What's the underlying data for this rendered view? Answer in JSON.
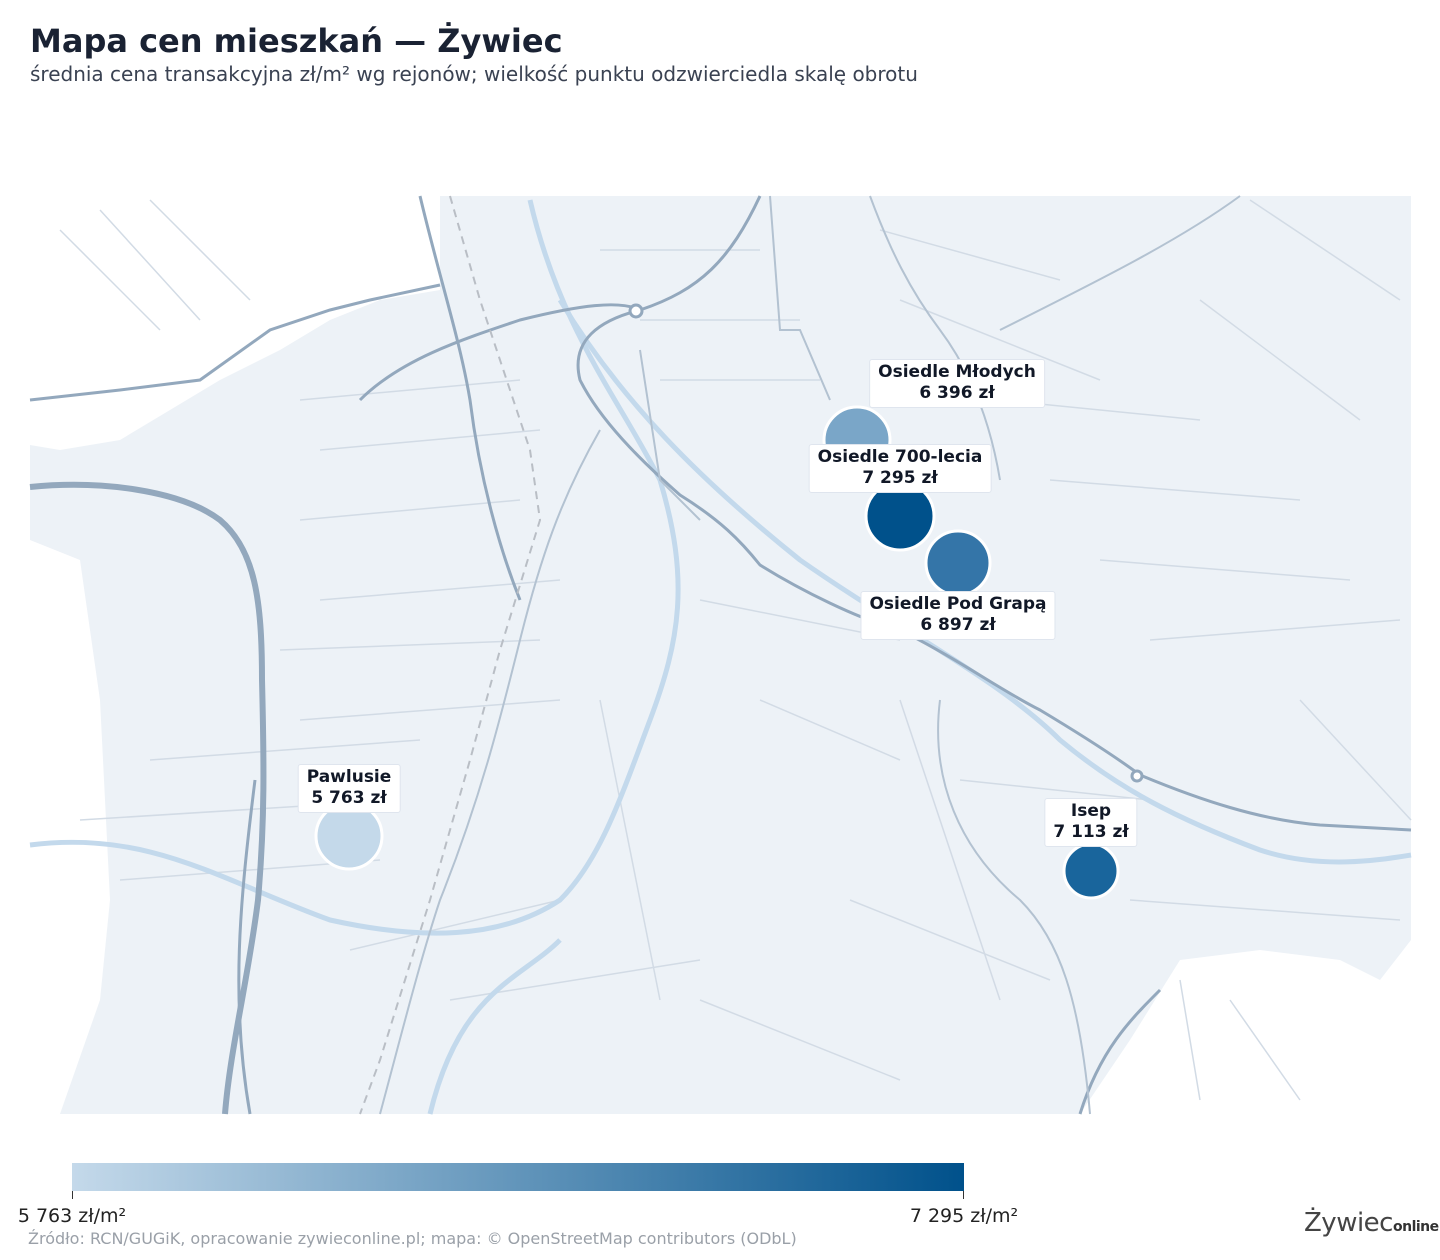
{
  "title": "Mapa cen mieszkań — Żywiec",
  "subtitle": "średnia cena transakcyjna zł/m² wg rejonów; wielkość punktu odzwierciedla skalę obrotu",
  "colors": {
    "map_bg": "#edf2f7",
    "road_major": "#93a8bd",
    "road_minor": "#d2dbe5",
    "river": "#c3d9ec",
    "scale_low": "#c4d9ea",
    "scale_high": "#00518b"
  },
  "districts": [
    {
      "name": "Osiedle Młodych",
      "price": "6 396 zł",
      "value": 6396,
      "color": "#7aa6c8"
    },
    {
      "name": "Osiedle 700-lecia",
      "price": "7 295 zł",
      "value": 7295,
      "color": "#00518b"
    },
    {
      "name": "Osiedle Pod Grapą",
      "price": "6 897 zł",
      "value": 6897,
      "color": "#3475a8"
    },
    {
      "name": "Pawlusie",
      "price": "5 763 zł",
      "value": 5763,
      "color": "#c4d9ea"
    },
    {
      "name": "Isep",
      "price": "7 113 zł",
      "value": 7113,
      "color": "#19659c"
    }
  ],
  "legend": {
    "min_label": "5 763 zł/m²",
    "max_label": "7 295 zł/m²"
  },
  "source": "Źródło: RCN/GUGiK, opracowanie zywieconline.pl; mapa: © OpenStreetMap contributors (ODbL)",
  "logo": {
    "main": "Żywiec",
    "suffix": "online"
  }
}
